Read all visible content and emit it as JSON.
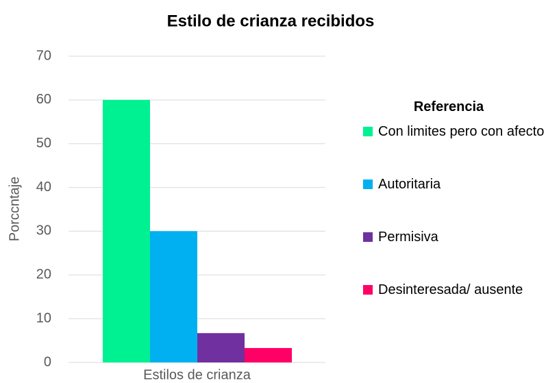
{
  "chart_data": {
    "type": "bar",
    "title": "Estilo de crianza recibidos",
    "y_label": "Porccntaje",
    "categories": [
      "Estilos de crianza"
    ],
    "series": [
      {
        "name": "Con limites pero con afecto",
        "color": "#00f191",
        "values": [
          60
        ]
      },
      {
        "name": "Autoritaria",
        "color": "#00b0f0",
        "values": [
          30
        ]
      },
      {
        "name": "Permisiva",
        "color": "#7030a0",
        "values": [
          6.7
        ]
      },
      {
        "name": "Desinteresada/ ausente",
        "color": "#ff0066",
        "values": [
          3.3
        ]
      }
    ],
    "legend_title": "Referencia",
    "legend": "right",
    "ylim": [
      0,
      70
    ],
    "yticks": [
      0,
      10,
      20,
      30,
      40,
      50,
      60,
      70
    ],
    "grid": true
  }
}
